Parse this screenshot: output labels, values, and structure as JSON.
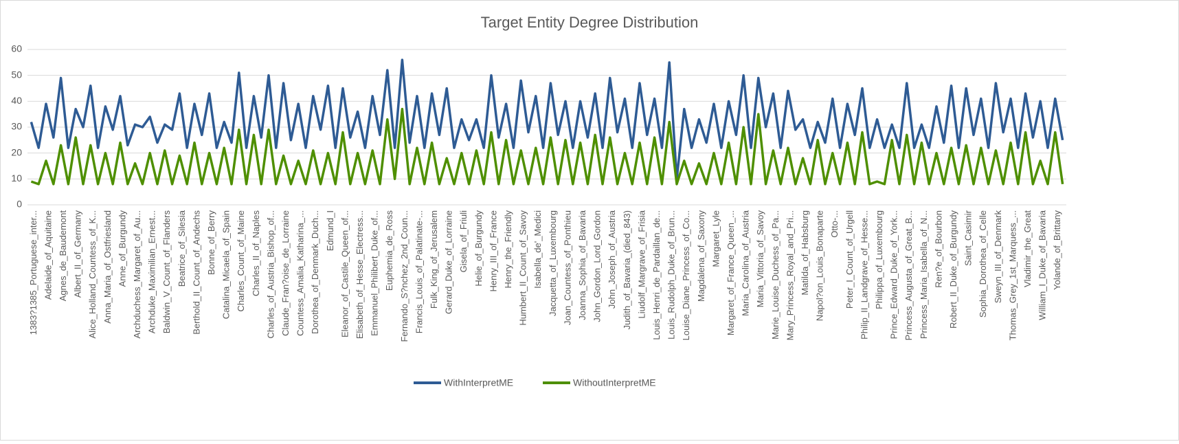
{
  "chart_data": {
    "type": "line",
    "title": "Target Entity Degree Distribution",
    "categories": [
      "1383?1385_Portuguese_inter...",
      null,
      "Adelaide_of_Aquitaine",
      null,
      "Agnes_de_Baudemont",
      null,
      "Albert_II_of_Germany",
      null,
      "Alice_Holland_Countess_of_K...",
      null,
      "Anna_Maria_of_Ostfriesland",
      null,
      "Anne_of_Burgundy",
      null,
      "Archduchess_Margaret_of_Au...",
      null,
      "Archduke_Maximilian_Ernest...",
      null,
      "Baldwin_V_Count_of_Flanders",
      null,
      "Beatrice_of_Silesia",
      null,
      "Berthold_II_Count_of_Andechs",
      null,
      "Bonne_of_Berry",
      null,
      "Catalina_Micaela_of_Spain",
      null,
      "Charles_Count_of_Maine",
      null,
      "Charles_II_of_Naples",
      null,
      "Charles_of_Austria_Bishop_of...",
      null,
      "Claude_Fran?oise_de_Lorraine",
      null,
      "Countess_Amalia_Katharina_...",
      null,
      "Dorothea_of_Denmark_Duch...",
      null,
      "Edmund_I",
      null,
      "Eleanor_of_Castile_Queen_of...",
      null,
      "Elisabeth_of_Hesse_Electress...",
      null,
      "Emmanuel_Philibert_Duke_of...",
      null,
      "Euphemia_de_Ross",
      null,
      "Fernando_S?nchez_2nd_Coun...",
      null,
      "Francis_Louis_of_Palatinate-...",
      null,
      "Fulk_King_of_Jerusalem",
      null,
      "Gerard_Duke_of_Lorraine",
      null,
      "Gisela_of_Friuli",
      null,
      "Helie_of_Burgundy",
      null,
      "Henry_III_of_France",
      null,
      "Henry_the_Friendly",
      null,
      "Humbert_II_Count_of_Savoy",
      null,
      "Isabella_de'_Medici",
      null,
      "Jacquetta_of_Luxembourg",
      null,
      "Joan_Countess_of_Ponthieu",
      null,
      "Joanna_Sophia_of_Bavaria",
      null,
      "John_Gordon_Lord_Gordon",
      null,
      "John_Joseph_of_Austria",
      null,
      "Judith_of_Bavaria_(died_843)",
      null,
      "Liudolf_Margrave_of_Frisia",
      null,
      "Louis_Henri_de_Pardaillan_de...",
      null,
      "Louis_Rudolph_Duke_of_Brun...",
      null,
      "Louise_Diane_Princess_of_Co...",
      null,
      "Magdalena_of_Saxony",
      null,
      "Margaret_Lyle",
      null,
      "Margaret_of_France_Queen_...",
      null,
      "Maria_Carolina_of_Austria",
      null,
      "Maria_Vittoria_of_Savoy",
      null,
      "Marie_Louise_Duchess_of_Pa...",
      null,
      "Mary_Princess_Royal_and_Pri...",
      null,
      "Matilda_of_Habsburg",
      null,
      "Napol?on_Louis_Bonaparte",
      null,
      "Otto-...",
      null,
      "Peter_I_Count_of_Urgell",
      null,
      "Philip_II_Landgrave_of_Hesse...",
      null,
      "Philippa_of_Luxembourg",
      null,
      "Prince_Edward_Duke_of_York...",
      null,
      "Princess_Augusta_of_Great_B...",
      null,
      "Princess_Maria_Isabella_of_N...",
      null,
      "Ren?e_of_Bourbon",
      null,
      "Robert_II_Duke_of_Burgundy",
      null,
      "Saint_Casimir",
      null,
      "Sophia_Dorothea_of_Celle",
      null,
      "Sweyn_III_of_Denmark",
      null,
      "Thomas_Grey_1st_Marquess_...",
      null,
      "Vladimir_the_Great",
      null,
      "William_I_Duke_of_Bavaria",
      null,
      "Yolande_of_Brittany",
      null
    ],
    "series": [
      {
        "name": "WithInterpretME",
        "color": "#2e5b94",
        "values": [
          32,
          22,
          39,
          26,
          49,
          22,
          37,
          30,
          46,
          22,
          38,
          29,
          42,
          23,
          31,
          30,
          34,
          24,
          31,
          29,
          43,
          22,
          39,
          27,
          43,
          22,
          32,
          24,
          51,
          22,
          42,
          26,
          50,
          22,
          47,
          25,
          39,
          22,
          42,
          29,
          46,
          22,
          45,
          26,
          36,
          22,
          42,
          27,
          52,
          22,
          56,
          24,
          42,
          22,
          43,
          27,
          45,
          22,
          33,
          25,
          33,
          22,
          50,
          26,
          39,
          22,
          48,
          28,
          42,
          22,
          47,
          27,
          40,
          22,
          40,
          26,
          43,
          22,
          49,
          28,
          41,
          22,
          47,
          27,
          41,
          22,
          55,
          10,
          37,
          22,
          33,
          24,
          39,
          22,
          40,
          27,
          50,
          22,
          49,
          30,
          43,
          22,
          44,
          29,
          33,
          22,
          32,
          24,
          41,
          22,
          39,
          27,
          45,
          22,
          33,
          22,
          31,
          22,
          47,
          22,
          31,
          22,
          38,
          24,
          46,
          22,
          45,
          27,
          41,
          22,
          47,
          28,
          41,
          22,
          43,
          26,
          40,
          22,
          41,
          25
        ]
      },
      {
        "name": "WithoutInterpretME",
        "color": "#4e8f00",
        "values": [
          9,
          8,
          17,
          8,
          23,
          8,
          26,
          8,
          23,
          8,
          20,
          8,
          24,
          8,
          16,
          8,
          20,
          8,
          21,
          8,
          19,
          8,
          24,
          8,
          20,
          8,
          22,
          8,
          29,
          8,
          27,
          8,
          29,
          8,
          19,
          8,
          17,
          8,
          21,
          8,
          20,
          8,
          28,
          8,
          20,
          8,
          21,
          8,
          33,
          10,
          37,
          8,
          22,
          8,
          24,
          8,
          18,
          8,
          20,
          8,
          21,
          8,
          28,
          8,
          25,
          8,
          21,
          8,
          22,
          8,
          26,
          8,
          25,
          8,
          24,
          8,
          27,
          8,
          26,
          8,
          20,
          8,
          24,
          8,
          26,
          8,
          32,
          8,
          17,
          8,
          16,
          8,
          20,
          8,
          24,
          8,
          30,
          8,
          35,
          8,
          21,
          8,
          22,
          8,
          18,
          8,
          25,
          8,
          20,
          8,
          24,
          8,
          28,
          8,
          9,
          8,
          25,
          8,
          27,
          8,
          24,
          8,
          20,
          8,
          22,
          8,
          23,
          8,
          22,
          8,
          21,
          8,
          24,
          8,
          28,
          8,
          17,
          8,
          28,
          8
        ]
      }
    ],
    "ylim": [
      0,
      60
    ],
    "yticks": [
      0,
      10,
      20,
      30,
      40,
      50,
      60
    ],
    "grid": true,
    "legend": "bottom"
  }
}
